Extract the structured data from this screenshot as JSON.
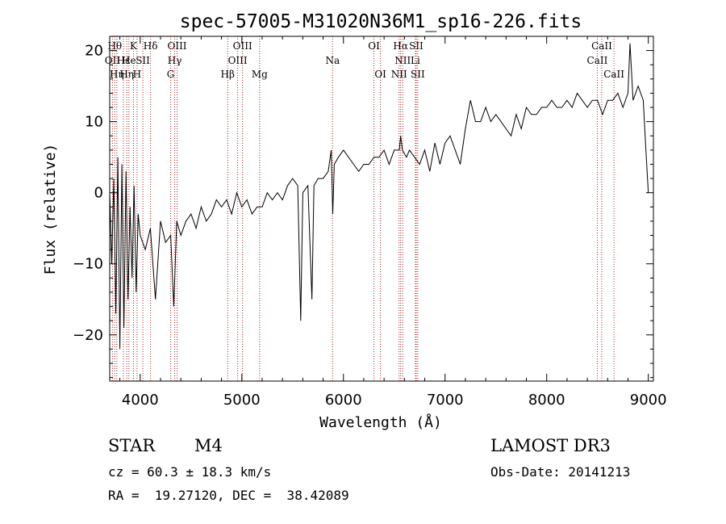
{
  "chart_data": {
    "type": "line",
    "title": "spec-57005-M31020N36M1_sp16-226.fits",
    "xlabel": "Wavelength (Å)",
    "ylabel": "Flux (relative)",
    "xlim": [
      3700,
      9050
    ],
    "ylim": [
      -26.5,
      22
    ],
    "xticks": [
      4000,
      5000,
      6000,
      7000,
      8000,
      9000
    ],
    "yticks": [
      -20,
      -10,
      0,
      10,
      20
    ],
    "series": [
      {
        "name": "flux",
        "color": "#000000",
        "x": [
          3700,
          3720,
          3740,
          3760,
          3780,
          3800,
          3820,
          3840,
          3860,
          3880,
          3900,
          3920,
          3940,
          3960,
          3980,
          4000,
          4050,
          4100,
          4150,
          4200,
          4250,
          4300,
          4330,
          4360,
          4400,
          4450,
          4500,
          4550,
          4600,
          4650,
          4700,
          4750,
          4800,
          4850,
          4900,
          4950,
          5000,
          5050,
          5100,
          5150,
          5200,
          5250,
          5300,
          5350,
          5400,
          5450,
          5500,
          5550,
          5580,
          5600,
          5650,
          5690,
          5710,
          5750,
          5800,
          5850,
          5880,
          5895,
          5910,
          5950,
          6000,
          6050,
          6100,
          6150,
          6200,
          6250,
          6300,
          6350,
          6400,
          6450,
          6500,
          6550,
          6563,
          6580,
          6620,
          6650,
          6700,
          6750,
          6800,
          6850,
          6900,
          6950,
          7000,
          7050,
          7100,
          7150,
          7200,
          7250,
          7300,
          7350,
          7400,
          7450,
          7500,
          7550,
          7600,
          7650,
          7700,
          7750,
          7800,
          7850,
          7900,
          7950,
          8000,
          8050,
          8100,
          8150,
          8200,
          8250,
          8300,
          8350,
          8400,
          8450,
          8500,
          8550,
          8600,
          8650,
          8700,
          8750,
          8800,
          8820,
          8850,
          8900,
          8950,
          8980,
          9000
        ],
        "y": [
          0,
          -10,
          2,
          -17,
          5,
          -22,
          4,
          -19,
          3,
          -15,
          -2,
          -12,
          1,
          -14,
          -3,
          -6,
          -8,
          -5,
          -15,
          -4,
          -7,
          -6,
          -16,
          -4,
          -6,
          -4,
          -3,
          -5,
          -2,
          -4,
          -3,
          -1,
          -2,
          -1,
          -3,
          0,
          -2,
          -1,
          -3,
          -2,
          -2,
          0,
          -1,
          0,
          -1,
          1,
          2,
          1,
          -18,
          0,
          1,
          -15,
          1,
          2,
          2,
          3,
          6,
          -3,
          4,
          5,
          6,
          5,
          4,
          3,
          4,
          4,
          5,
          5,
          6,
          4,
          6,
          6,
          8,
          6,
          5,
          6,
          5,
          4,
          6,
          3,
          7,
          4,
          7,
          8,
          6,
          4,
          9,
          13,
          10,
          10,
          12,
          10,
          11,
          10,
          9,
          8,
          11,
          9,
          12,
          11,
          11,
          12,
          12,
          13,
          12,
          12,
          13,
          12,
          14,
          13,
          12,
          13,
          13,
          11,
          13,
          13,
          14,
          12,
          14,
          21,
          13,
          15,
          13,
          5,
          0
        ]
      }
    ],
    "lines": [
      {
        "w": 3727,
        "label": "OII",
        "row": 2
      },
      {
        "w": 3750,
        "label": "Hθ",
        "row": 1
      },
      {
        "w": 3770,
        "label": "Hη",
        "row": 3
      },
      {
        "w": 3835,
        "label": "Hε",
        "row": 2
      },
      {
        "w": 3868,
        "label": "Hη",
        "row": 3
      },
      {
        "w": 3889,
        "label": "He",
        "row": 2
      },
      {
        "w": 3934,
        "label": "K",
        "row": 1
      },
      {
        "w": 3969,
        "label": "H",
        "row": 3
      },
      {
        "w": 4026,
        "label": "SII",
        "row": 2
      },
      {
        "w": 4102,
        "label": "Hδ",
        "row": 1
      },
      {
        "w": 4300,
        "label": "G",
        "row": 3
      },
      {
        "w": 4340,
        "label": "Hγ",
        "row": 2
      },
      {
        "w": 4363,
        "label": "OIII",
        "row": 1
      },
      {
        "w": 4861,
        "label": "Hβ",
        "row": 3
      },
      {
        "w": 4959,
        "label": "OIII",
        "row": 2
      },
      {
        "w": 5007,
        "label": "OIII",
        "row": 1
      },
      {
        "w": 5175,
        "label": "Mg",
        "row": 3
      },
      {
        "w": 5893,
        "label": "Na",
        "row": 2
      },
      {
        "w": 6300,
        "label": "OI",
        "row": 1
      },
      {
        "w": 6364,
        "label": "OI",
        "row": 3
      },
      {
        "w": 6548,
        "label": "NII",
        "row": 3
      },
      {
        "w": 6563,
        "label": "Hα",
        "row": 1
      },
      {
        "w": 6583,
        "label": "NII",
        "row": 2
      },
      {
        "w": 6708,
        "label": "Li",
        "row": 2
      },
      {
        "w": 6716,
        "label": "SII",
        "row": 1
      },
      {
        "w": 6731,
        "label": "SII",
        "row": 3
      },
      {
        "w": 8498,
        "label": "CaII",
        "row": 2
      },
      {
        "w": 8542,
        "label": "CaII",
        "row": 1
      },
      {
        "w": 8662,
        "label": "CaII",
        "row": 3
      }
    ]
  },
  "info": {
    "object_class": "STAR",
    "subclass": "M4",
    "survey": "LAMOST DR3",
    "cz": "cz = 60.3 ± 18.3 km/s",
    "obs_date": "Obs-Date: 20141213",
    "radec": "RA =  19.27120, DEC =  38.42089"
  }
}
